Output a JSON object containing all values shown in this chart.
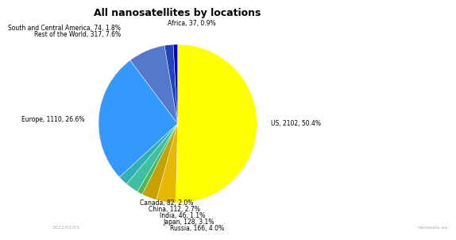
{
  "title": "All nanosatellites by locations",
  "slices": [
    {
      "label": "US, 2102, 50.4%",
      "value": 2102,
      "color": "#ffff00"
    },
    {
      "label": "Russia, 166, 4.0%",
      "value": 166,
      "color": "#e6b800"
    },
    {
      "label": "Japan, 128, 3.1%",
      "value": 128,
      "color": "#c8a000"
    },
    {
      "label": "India, 46, 1.1%",
      "value": 46,
      "color": "#4db84d"
    },
    {
      "label": "China, 112, 2.7%",
      "value": 112,
      "color": "#40c0a0"
    },
    {
      "label": "Canada, 82, 2.0%",
      "value": 82,
      "color": "#30b0b0"
    },
    {
      "label": "Europe, 1110, 26.6%",
      "value": 1110,
      "color": "#3399ff"
    },
    {
      "label": "Rest of the World, 317, 7.6%",
      "value": 317,
      "color": "#5577cc"
    },
    {
      "label": "South and Central America, 74, 1.8%",
      "value": 74,
      "color": "#2244bb"
    },
    {
      "label": "Africa, 37, 0.9%",
      "value": 37,
      "color": "#0000cc"
    }
  ],
  "startangle": 90,
  "label_fontsize": 5.5,
  "title_fontsize": 9,
  "title_fontweight": "bold",
  "watermark_left": "2022/01/01",
  "watermark_right": "nanosats.eu",
  "bg_color": "#ffffff"
}
